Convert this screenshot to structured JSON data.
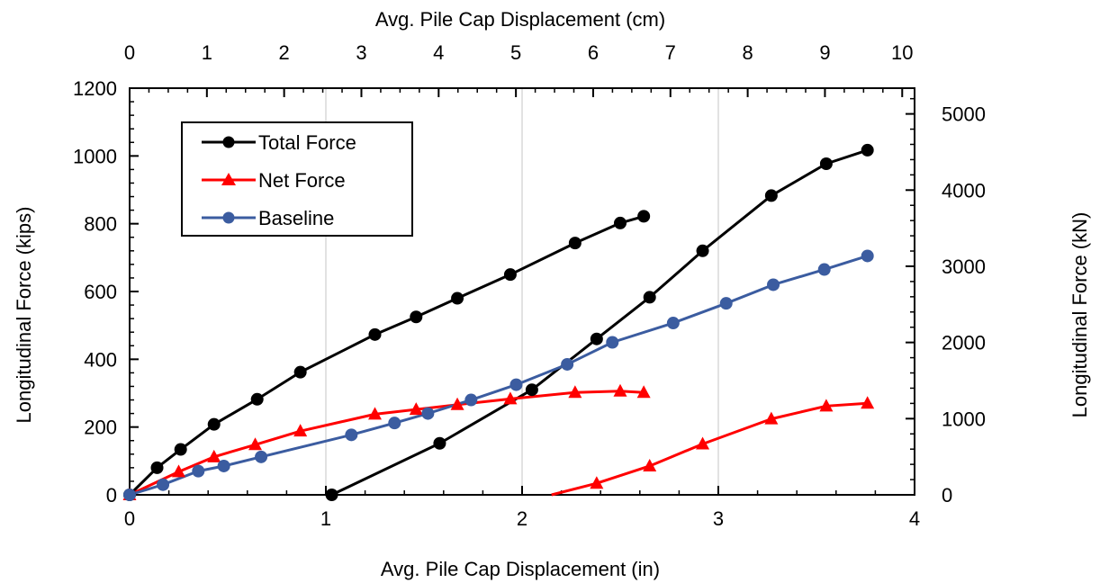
{
  "chart_data": {
    "type": "line",
    "xlabel": "Avg. Pile Cap Displacement (in)",
    "x2label": "Avg. Pile Cap Displacement (cm)",
    "ylabel": "Longitudinal Force (kips)",
    "y2label": "Longitudinal Force (kN)",
    "xlim": [
      0,
      4
    ],
    "x2lim": [
      0,
      10.16
    ],
    "ylim": [
      0,
      1200
    ],
    "y2lim": [
      0,
      5337.9
    ],
    "x_ticks": [
      "0",
      "1",
      "2",
      "3",
      "4"
    ],
    "x2_ticks": [
      "0",
      "1",
      "2",
      "3",
      "4",
      "5",
      "6",
      "7",
      "8",
      "9",
      "10"
    ],
    "y_ticks": [
      "0",
      "200",
      "400",
      "600",
      "800",
      "1000",
      "1200"
    ],
    "y2_ticks": [
      "0",
      "1000",
      "2000",
      "3000",
      "4000",
      "5000"
    ],
    "grid": "vertical major gridlines",
    "legend_position": "top-left",
    "series": [
      {
        "name": "Total Force",
        "color": "#000000",
        "marker": "circle",
        "x": [
          0,
          0.14,
          0.26,
          0.43,
          0.65,
          0.87,
          1.25,
          1.46,
          1.67,
          1.94,
          2.27,
          2.5,
          2.62,
          1.03,
          1.58,
          2.05,
          2.38,
          2.65,
          2.92,
          3.27,
          3.55,
          3.76
        ],
        "y": [
          0,
          80,
          134,
          208,
          282,
          362,
          473,
          525,
          580,
          650,
          743,
          802,
          822,
          0,
          152,
          310,
          460,
          583,
          720,
          883,
          977,
          1017
        ]
      },
      {
        "name": "Net Force",
        "color": "#ff0000",
        "marker": "triangle",
        "x": [
          0,
          0.25,
          0.43,
          0.64,
          0.87,
          1.25,
          1.46,
          1.67,
          1.94,
          2.27,
          2.5,
          2.62,
          1.5,
          2.15,
          2.38,
          2.65,
          2.92,
          3.27,
          3.55,
          3.76
        ],
        "y": [
          0,
          68,
          112,
          148,
          188,
          238,
          252,
          266,
          283,
          302,
          306,
          302,
          0,
          0,
          34,
          85,
          150,
          224,
          262,
          270
        ]
      },
      {
        "name": "Baseline",
        "color": "#3b5ca0",
        "marker": "circle",
        "x": [
          0,
          0.17,
          0.35,
          0.48,
          0.67,
          1.13,
          1.35,
          1.52,
          1.74,
          1.97,
          2.23,
          2.46,
          2.77,
          3.04,
          3.28,
          3.54,
          3.76
        ],
        "y": [
          0,
          30,
          70,
          85,
          112,
          177,
          212,
          240,
          280,
          325,
          385,
          450,
          507,
          565,
          620,
          665,
          705
        ]
      }
    ],
    "segments": [
      {
        "series": "Total Force",
        "from": 0,
        "to": 13
      },
      {
        "series": "Total Force",
        "from": 13,
        "to": 22
      },
      {
        "series": "Net Force",
        "from": 0,
        "to": 12
      },
      {
        "series": "Net Force",
        "from": 12,
        "to": 13
      },
      {
        "series": "Net Force",
        "from": 13,
        "to": 20
      },
      {
        "series": "Baseline",
        "from": 0,
        "to": 17
      }
    ],
    "unmarked_points": {
      "Net Force": [
        12,
        13
      ]
    }
  }
}
